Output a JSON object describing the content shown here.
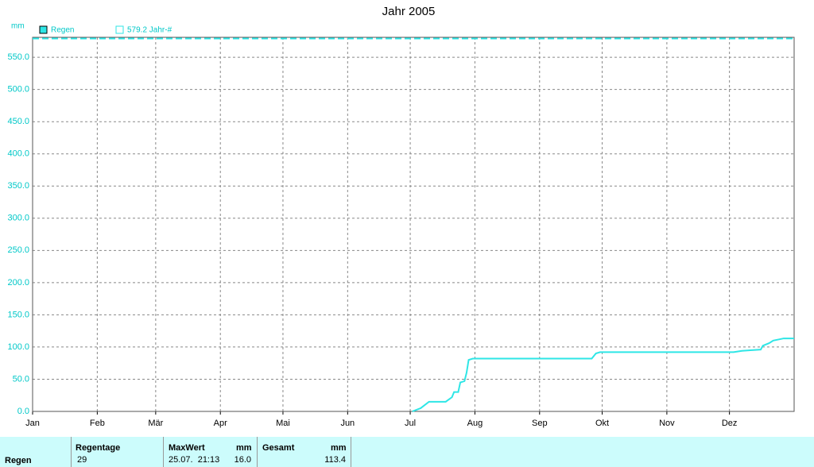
{
  "chart_data": {
    "type": "line",
    "title": "Jahr 2005",
    "y_unit": "mm",
    "xlim": [
      0,
      365
    ],
    "xticks": [
      {
        "value": 0,
        "label": "Jan"
      },
      {
        "value": 31,
        "label": "Feb"
      },
      {
        "value": 59,
        "label": "Mär"
      },
      {
        "value": 90,
        "label": "Apr"
      },
      {
        "value": 120,
        "label": "Mai"
      },
      {
        "value": 151,
        "label": "Jun"
      },
      {
        "value": 181,
        "label": "Jul"
      },
      {
        "value": 212,
        "label": "Aug"
      },
      {
        "value": 243,
        "label": "Sep"
      },
      {
        "value": 273,
        "label": "Okt"
      },
      {
        "value": 304,
        "label": "Nov"
      },
      {
        "value": 334,
        "label": "Dez"
      }
    ],
    "ylim": [
      0,
      581
    ],
    "yticks": [
      {
        "value": 0,
        "label": "0.0"
      },
      {
        "value": 50,
        "label": "50.0"
      },
      {
        "value": 100,
        "label": "100.0"
      },
      {
        "value": 150,
        "label": "150.0"
      },
      {
        "value": 200,
        "label": "200.0"
      },
      {
        "value": 250,
        "label": "250.0"
      },
      {
        "value": 300,
        "label": "300.0"
      },
      {
        "value": 350,
        "label": "350.0"
      },
      {
        "value": 400,
        "label": "400.0"
      },
      {
        "value": 450,
        "label": "450.0"
      },
      {
        "value": 500,
        "label": "500.0"
      },
      {
        "value": 550,
        "label": "550.0"
      }
    ],
    "grid": true,
    "series": [
      {
        "name": "Regen",
        "color": "#2ee6e6",
        "x": [
          182,
          186,
          190,
          198,
          201,
          202,
          204,
          205,
          207,
          208,
          209,
          211,
          268,
          270,
          272,
          336,
          340,
          344,
          349,
          350,
          353,
          355,
          358,
          360,
          365
        ],
        "values": [
          0,
          5,
          15,
          15,
          22,
          30,
          30,
          45,
          47,
          60,
          80,
          82,
          82,
          90,
          92,
          92,
          94,
          95,
          96,
          102,
          106,
          110,
          112,
          113.4,
          113.4
        ]
      }
    ],
    "reference_line": {
      "label": "579.2 Jahr-#",
      "value": 579.2,
      "color": "#2ee6e6"
    }
  },
  "table": {
    "columns": [
      "Regentage",
      "MaxWert",
      "mm",
      "Gesamt",
      "mm"
    ],
    "rows": [
      [
        "Regen",
        "29",
        "25.07.  21:13",
        "16.0",
        "113.4"
      ]
    ]
  }
}
